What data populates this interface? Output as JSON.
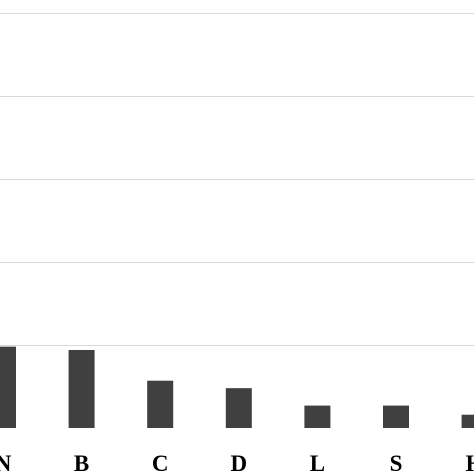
{
  "chart_data": {
    "type": "bar",
    "categories": [
      "N",
      "B",
      "C",
      "D",
      "L",
      "S",
      "H"
    ],
    "values": [
      0.98,
      0.94,
      0.57,
      0.48,
      0.27,
      0.27,
      0.16
    ],
    "title": "",
    "xlabel": "",
    "ylabel": "",
    "ylim": [
      0,
      5
    ],
    "grid": true,
    "legend": "none",
    "colors": {
      "bar": "#404040",
      "grid": "#d9d9d9",
      "background": "#ffffff"
    }
  }
}
